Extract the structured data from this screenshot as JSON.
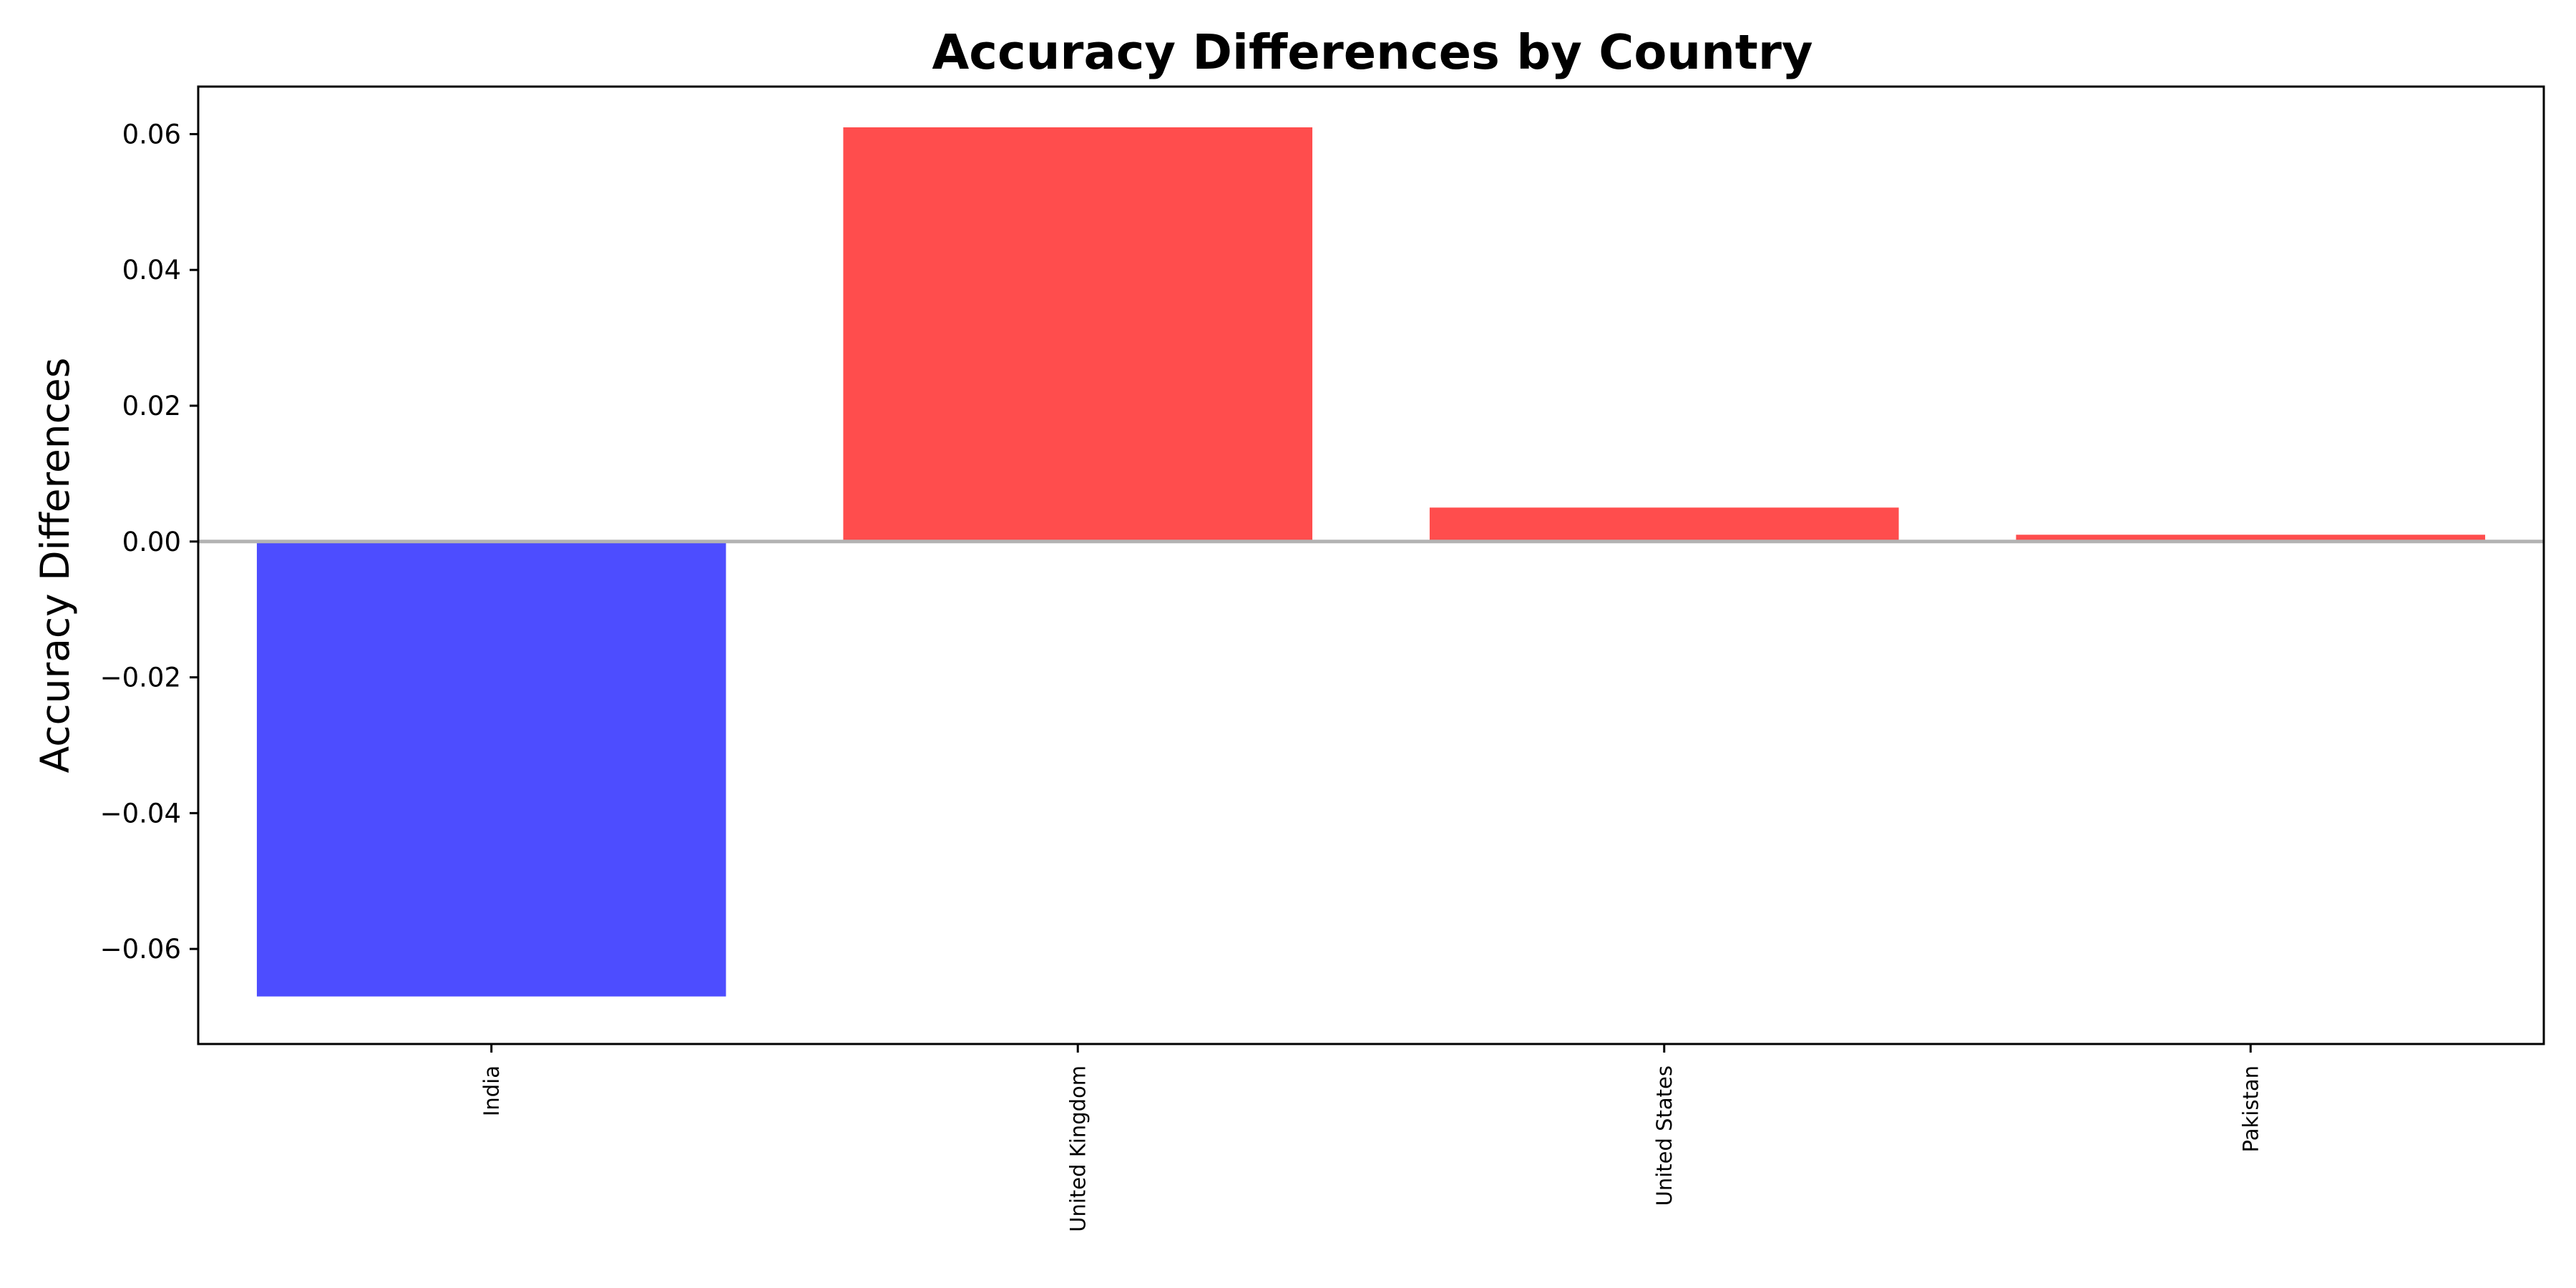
{
  "chart_data": {
    "type": "bar",
    "title": "Accuracy Differences by Country",
    "xlabel": "",
    "ylabel": "Accuracy Differences",
    "categories": [
      "India",
      "United Kingdom",
      "United States",
      "Pakistan"
    ],
    "values": [
      -0.067,
      0.061,
      0.005,
      0.001
    ],
    "ylim": [
      -0.074,
      0.067
    ],
    "yticks": [
      0.06,
      0.04,
      0.02,
      0.0,
      -0.02,
      -0.04,
      -0.06
    ],
    "ytick_labels": [
      "0.06",
      "0.04",
      "0.02",
      "0.00",
      "−0.02",
      "−0.04",
      "−0.06"
    ],
    "colors": {
      "positive": "#ff4d4d",
      "negative": "#4d4dff",
      "zero_line": "#b3b3b3",
      "axis": "#000000"
    },
    "grid": false,
    "legend": "none",
    "zero_line": true
  }
}
